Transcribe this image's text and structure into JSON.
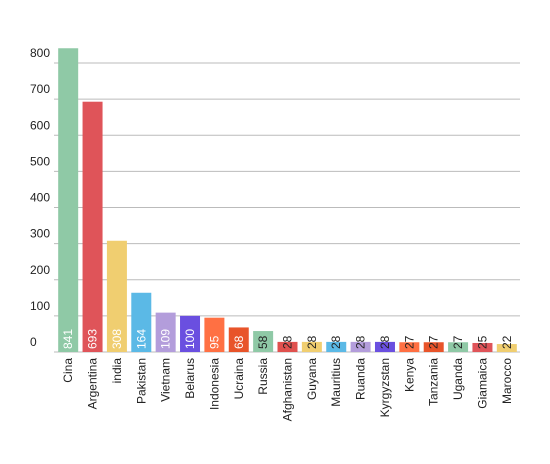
{
  "chart_data": {
    "type": "bar",
    "categories": [
      "Cina",
      "Argentina",
      "india",
      "Pakistan",
      "Vietnam",
      "Belarus",
      "Indonesia",
      "Ucraina",
      "Russia",
      "Afghanistan",
      "Guyana",
      "Mauritius",
      "Ruanda",
      "Kyrgyzstan",
      "Kenya",
      "Tanzania",
      "Uganda",
      "Giamaica",
      "Marocco"
    ],
    "values": [
      841,
      693,
      308,
      164,
      109,
      100,
      95,
      68,
      58,
      28,
      28,
      28,
      28,
      28,
      27,
      27,
      27,
      25,
      22
    ],
    "colors": [
      "#8fc9a6",
      "#df5459",
      "#f0ce70",
      "#5bb9e6",
      "#b39ddb",
      "#6a4fe0",
      "#ff7043",
      "#e8542a",
      "#8fc9a6",
      "#e0514e",
      "#f0ce70",
      "#5bb9e6",
      "#b39ddb",
      "#6a4fe0",
      "#ff7043",
      "#e8542a",
      "#8fc9a6",
      "#df5459",
      "#f0ce70"
    ],
    "ylim": [
      0,
      850
    ],
    "yticks": [
      0,
      100,
      200,
      300,
      400,
      500,
      600,
      700,
      800
    ],
    "grid": true
  }
}
